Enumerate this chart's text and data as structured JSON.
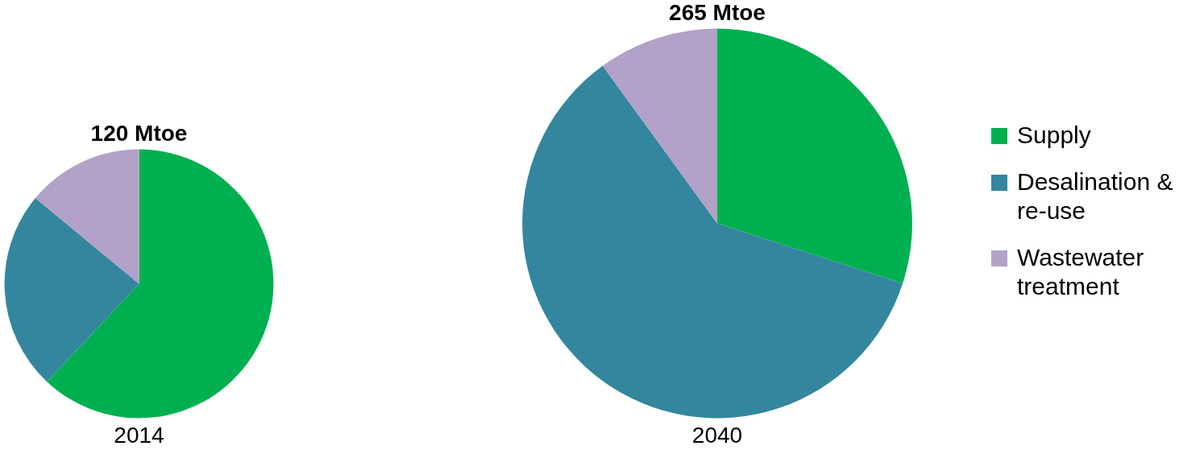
{
  "chart_data": [
    {
      "type": "pie",
      "title": "120 Mtoe",
      "xlabel": "2014",
      "categories": [
        null,
        null,
        null
      ],
      "values": [
        62,
        24,
        14
      ],
      "colors": [
        "#00b050",
        "#33869e",
        "#b2a2c7"
      ],
      "legend": false
    },
    {
      "type": "pie",
      "title": "265 Mtoe",
      "xlabel": "2040",
      "categories": [
        "Supply",
        "Desalination & re-use",
        "Wastewater treatment"
      ],
      "values": [
        30,
        60,
        10
      ],
      "colors": [
        "#00b050",
        "#33869e",
        "#b2a2c7"
      ],
      "legend": "right"
    }
  ]
}
